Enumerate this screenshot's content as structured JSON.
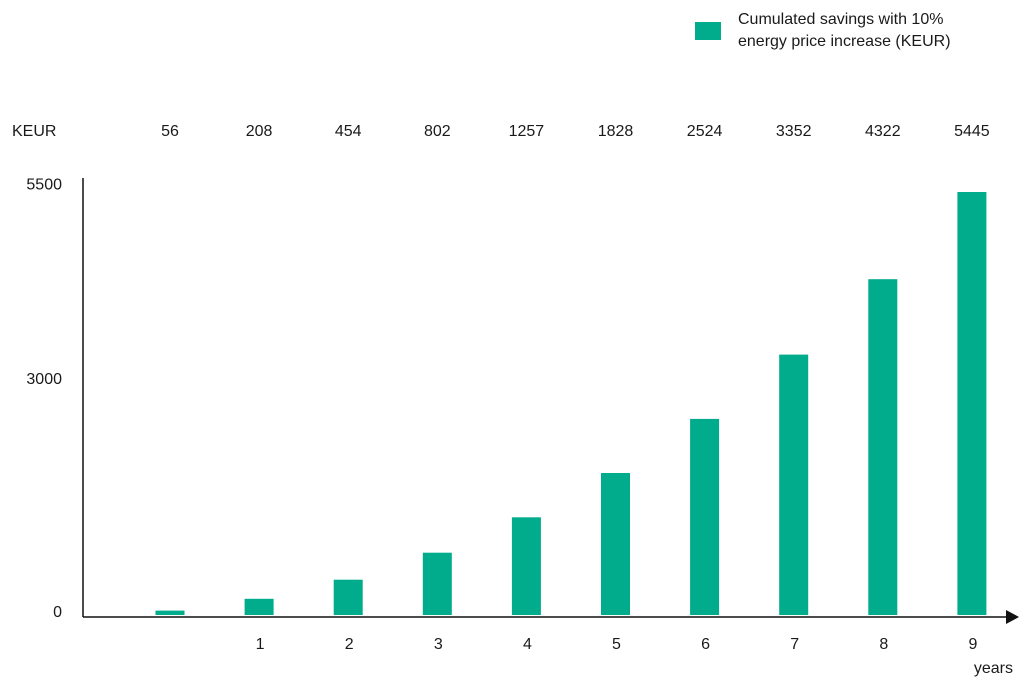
{
  "chart_data": {
    "type": "bar",
    "categories": [
      "",
      "1",
      "2",
      "3",
      "4",
      "5",
      "6",
      "7",
      "8",
      "9"
    ],
    "values": [
      56,
      208,
      454,
      802,
      1257,
      1828,
      2524,
      3352,
      4322,
      5445
    ],
    "data_labels": [
      "56",
      "208",
      "454",
      "802",
      "1257",
      "1828",
      "2524",
      "3352",
      "4322",
      "5445"
    ],
    "series": [
      {
        "name": "Cumulated savings with 10%\nenergy price increase (KEUR)",
        "values": [
          56,
          208,
          454,
          802,
          1257,
          1828,
          2524,
          3352,
          4322,
          5445
        ]
      }
    ],
    "title": "",
    "xlabel": "years",
    "ylabel": "KEUR",
    "yticks": [
      "0",
      "3000",
      "5500"
    ],
    "ylim": [
      0,
      5500
    ],
    "grid": false,
    "legend_position": "top-right"
  },
  "colors": {
    "bar": "#00ac8b",
    "axis": "#111111",
    "text": "#1a1a1a"
  }
}
